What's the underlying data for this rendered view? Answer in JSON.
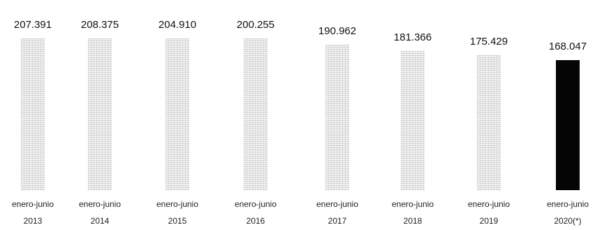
{
  "chart_data": {
    "type": "bar",
    "categories": [
      [
        "enero-junio",
        "2013"
      ],
      [
        "enero-junio",
        "2014"
      ],
      [
        "enero-junio",
        "2015"
      ],
      [
        "enero-junio",
        "2016"
      ],
      [
        "enero-junio",
        "2017"
      ],
      [
        "enero-junio",
        "2018"
      ],
      [
        "enero-junio",
        "2019"
      ],
      [
        "enero-junio",
        "2020(*)"
      ]
    ],
    "values": [
      207391,
      208375,
      204910,
      200255,
      190962,
      181366,
      175429,
      168047
    ],
    "value_labels": [
      "207.391",
      "208.375",
      "204.910",
      "200.255",
      "190.962",
      "181.366",
      "175.429",
      "168.047"
    ],
    "bar_colors": [
      "#e8e8e8",
      "#e8e8e8",
      "#e8e8e8",
      "#e8e8e8",
      "#e8e8e8",
      "#e8e8e8",
      "#e8e8e8",
      "#050505"
    ],
    "highlight_index": 7,
    "grid": false,
    "legend": "none"
  }
}
